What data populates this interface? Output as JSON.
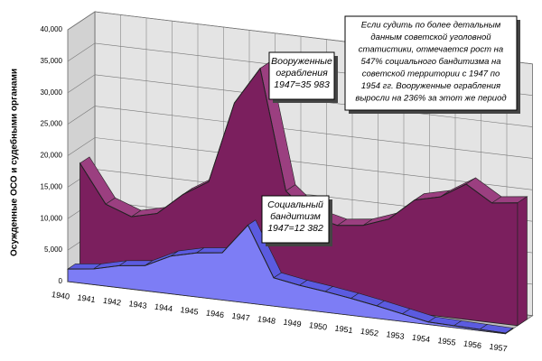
{
  "chart_data": {
    "type": "area3d",
    "y_axis_label": "Осужденные ОСО и судебными органами",
    "categories": [
      "1940",
      "1941",
      "1942",
      "1943",
      "1944",
      "1945",
      "1946",
      "1947",
      "1948",
      "1949",
      "1950",
      "1951",
      "1952",
      "1953",
      "1954",
      "1955",
      "1956",
      "1957"
    ],
    "series": [
      {
        "color": "#7b1f5e",
        "values": [
          17500,
          11500,
          10000,
          11000,
          14500,
          17000,
          30000,
          35983,
          17000,
          13500,
          12500,
          13000,
          14500,
          18000,
          19000,
          21500,
          19000,
          19500
        ]
      },
      {
        "color": "#7d7df5",
        "values": [
          2000,
          2500,
          3500,
          4000,
          6000,
          7000,
          7500,
          12382,
          4500,
          3800,
          3300,
          2700,
          2000,
          1200,
          400,
          300,
          200,
          100
        ]
      }
    ],
    "ylim": [
      0,
      40000
    ],
    "yticks": [
      0,
      {
        "value": 5000,
        "label": "5,000"
      },
      {
        "value": 10000,
        "label": "10,000"
      },
      {
        "value": 15000,
        "label": "15,000"
      },
      {
        "value": 20000,
        "label": "20,000"
      },
      {
        "value": 25000,
        "label": "25,000"
      },
      {
        "value": 30000,
        "label": "30,000"
      },
      {
        "value": 35000,
        "label": "35,000"
      },
      {
        "value": 40000,
        "label": "40,000"
      }
    ],
    "grid": true,
    "annotations": [
      {
        "lines": [
          "Вооруженные",
          "ограбления",
          "1947=35 983"
        ]
      },
      {
        "lines": [
          "Социальный",
          "бандитизм",
          "1947=12 382"
        ]
      },
      {
        "lines": [
          "Если судить по более детальным",
          "данным советской уголовной",
          "статистики, отмечается рост на",
          "547% социального бандитизма на",
          "советской территории с 1947 по",
          "1954 гг. Вооруженные ограбления",
          "выросли на 236% за этот же период"
        ]
      }
    ]
  }
}
